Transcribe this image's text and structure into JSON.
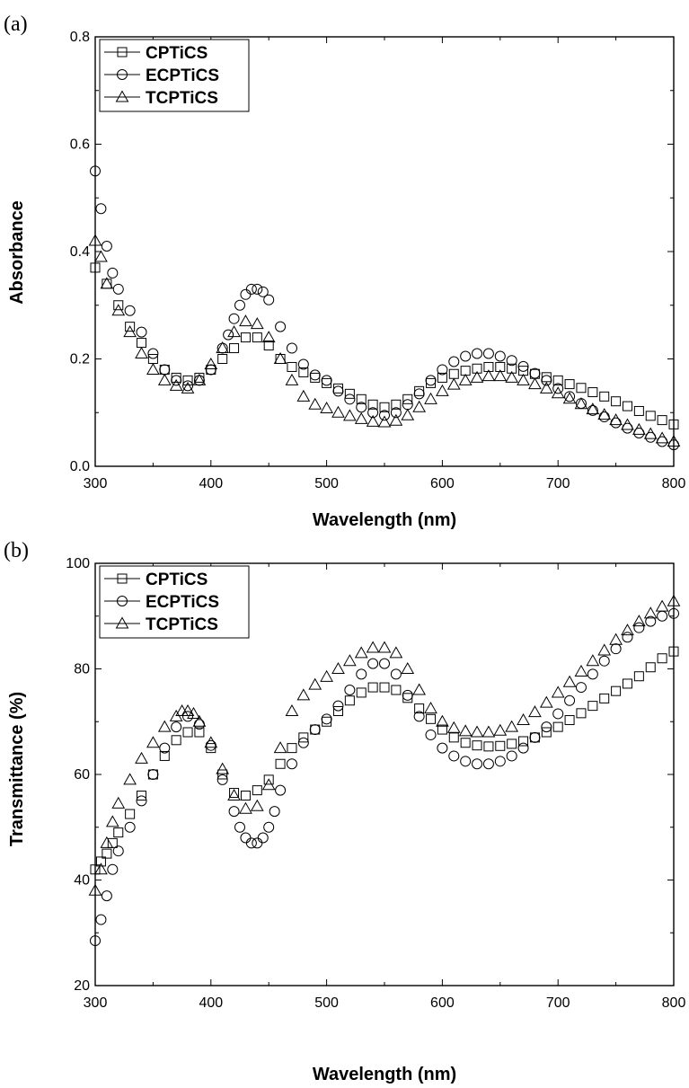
{
  "chart_data": [
    {
      "panel_label": "(a)",
      "type": "scatter",
      "xlabel": "Wavelength (nm)",
      "ylabel": "Absorbance",
      "xlim": [
        300,
        800
      ],
      "ylim": [
        0.0,
        0.8
      ],
      "xticks": [
        "300",
        "400",
        "500",
        "600",
        "700",
        "800"
      ],
      "yticks": [
        "0.0",
        "0.2",
        "0.4",
        "0.6",
        "0.8"
      ],
      "grid": false,
      "legend_position": "top-left",
      "series": [
        {
          "name": "CPTiCS",
          "marker": "square",
          "x": [
            300,
            310,
            320,
            330,
            340,
            350,
            360,
            370,
            380,
            390,
            400,
            410,
            420,
            430,
            440,
            450,
            460,
            470,
            480,
            490,
            500,
            510,
            520,
            530,
            540,
            550,
            560,
            570,
            580,
            590,
            600,
            610,
            620,
            630,
            640,
            650,
            660,
            670,
            680,
            690,
            700,
            710,
            720,
            730,
            740,
            750,
            760,
            770,
            780,
            790,
            800
          ],
          "y": [
            0.37,
            0.34,
            0.3,
            0.26,
            0.23,
            0.2,
            0.18,
            0.165,
            0.16,
            0.165,
            0.18,
            0.2,
            0.22,
            0.24,
            0.24,
            0.225,
            0.2,
            0.185,
            0.175,
            0.165,
            0.155,
            0.145,
            0.135,
            0.125,
            0.115,
            0.11,
            0.115,
            0.125,
            0.14,
            0.155,
            0.165,
            0.172,
            0.178,
            0.182,
            0.185,
            0.185,
            0.182,
            0.178,
            0.172,
            0.166,
            0.16,
            0.153,
            0.146,
            0.138,
            0.13,
            0.121,
            0.112,
            0.103,
            0.094,
            0.086,
            0.078
          ]
        },
        {
          "name": "ECPTiCS",
          "marker": "circle",
          "x": [
            300,
            305,
            310,
            315,
            320,
            330,
            340,
            350,
            360,
            370,
            380,
            390,
            400,
            410,
            415,
            420,
            425,
            430,
            435,
            440,
            445,
            450,
            460,
            470,
            480,
            490,
            500,
            510,
            520,
            530,
            540,
            550,
            560,
            570,
            580,
            590,
            600,
            610,
            620,
            630,
            640,
            650,
            660,
            670,
            680,
            690,
            700,
            710,
            720,
            730,
            740,
            750,
            760,
            770,
            780,
            790,
            800
          ],
          "y": [
            0.55,
            0.48,
            0.41,
            0.36,
            0.33,
            0.29,
            0.25,
            0.21,
            0.18,
            0.16,
            0.15,
            0.16,
            0.18,
            0.22,
            0.245,
            0.275,
            0.3,
            0.32,
            0.33,
            0.33,
            0.325,
            0.31,
            0.26,
            0.22,
            0.19,
            0.17,
            0.16,
            0.14,
            0.125,
            0.11,
            0.1,
            0.095,
            0.1,
            0.115,
            0.135,
            0.16,
            0.18,
            0.195,
            0.205,
            0.21,
            0.21,
            0.205,
            0.197,
            0.186,
            0.173,
            0.16,
            0.145,
            0.13,
            0.117,
            0.104,
            0.092,
            0.081,
            0.071,
            0.062,
            0.054,
            0.046,
            0.04
          ]
        },
        {
          "name": "TCPTiCS",
          "marker": "triangle",
          "x": [
            300,
            305,
            310,
            320,
            330,
            340,
            350,
            360,
            370,
            380,
            390,
            400,
            410,
            420,
            430,
            440,
            450,
            460,
            470,
            480,
            490,
            500,
            510,
            520,
            530,
            540,
            550,
            560,
            570,
            580,
            590,
            600,
            610,
            620,
            630,
            640,
            650,
            660,
            670,
            680,
            690,
            700,
            710,
            720,
            730,
            740,
            750,
            760,
            770,
            780,
            790,
            800
          ],
          "y": [
            0.42,
            0.39,
            0.34,
            0.29,
            0.25,
            0.21,
            0.18,
            0.16,
            0.15,
            0.145,
            0.16,
            0.19,
            0.22,
            0.25,
            0.27,
            0.265,
            0.24,
            0.2,
            0.16,
            0.13,
            0.115,
            0.108,
            0.1,
            0.094,
            0.088,
            0.083,
            0.082,
            0.085,
            0.095,
            0.11,
            0.125,
            0.14,
            0.152,
            0.16,
            0.165,
            0.168,
            0.168,
            0.165,
            0.16,
            0.153,
            0.145,
            0.136,
            0.126,
            0.116,
            0.106,
            0.096,
            0.086,
            0.077,
            0.068,
            0.06,
            0.052,
            0.046
          ]
        }
      ]
    },
    {
      "panel_label": "(b)",
      "type": "scatter",
      "xlabel": "Wavelength (nm)",
      "ylabel": "Transmittance (%)",
      "xlim": [
        300,
        800
      ],
      "ylim": [
        20,
        100
      ],
      "xticks": [
        "300",
        "400",
        "500",
        "600",
        "700",
        "800"
      ],
      "yticks": [
        "20",
        "40",
        "60",
        "80",
        "100"
      ],
      "grid": false,
      "legend_position": "top-left",
      "series": [
        {
          "name": "CPTiCS",
          "marker": "square",
          "x": [
            300,
            305,
            310,
            315,
            320,
            330,
            340,
            350,
            360,
            370,
            380,
            390,
            400,
            410,
            420,
            430,
            440,
            450,
            460,
            470,
            480,
            490,
            500,
            510,
            520,
            530,
            540,
            550,
            560,
            570,
            580,
            590,
            600,
            610,
            620,
            630,
            640,
            650,
            660,
            670,
            680,
            690,
            700,
            710,
            720,
            730,
            740,
            750,
            760,
            770,
            780,
            790,
            800
          ],
          "y": [
            42,
            43.5,
            45,
            47,
            49,
            52.5,
            56,
            60,
            63.5,
            66.5,
            68,
            68,
            65,
            60,
            56.5,
            56,
            57,
            59,
            62,
            65,
            67,
            68.5,
            70,
            72,
            74,
            75.5,
            76.5,
            76.5,
            76,
            74.5,
            72.5,
            70.5,
            68.5,
            67,
            66,
            65.5,
            65.3,
            65.4,
            65.8,
            66.3,
            67,
            68,
            69,
            70.3,
            71.6,
            73,
            74.4,
            75.8,
            77.2,
            78.6,
            80.3,
            82,
            83.3
          ]
        },
        {
          "name": "ECPTiCS",
          "marker": "circle",
          "x": [
            300,
            305,
            310,
            315,
            320,
            330,
            340,
            350,
            360,
            370,
            380,
            390,
            400,
            410,
            420,
            425,
            430,
            435,
            440,
            445,
            450,
            455,
            460,
            470,
            480,
            490,
            500,
            510,
            520,
            530,
            540,
            550,
            560,
            570,
            580,
            590,
            600,
            610,
            620,
            630,
            640,
            650,
            660,
            670,
            680,
            690,
            700,
            710,
            720,
            730,
            740,
            750,
            760,
            770,
            780,
            790,
            800
          ],
          "y": [
            28.5,
            32.5,
            37,
            42,
            45.5,
            50,
            55,
            60,
            65,
            69,
            71,
            69.5,
            65.5,
            59,
            53,
            50,
            48,
            47,
            47,
            48,
            50,
            53,
            57,
            62,
            66,
            68.5,
            70.5,
            73,
            76,
            79,
            81,
            81,
            79,
            75,
            71,
            67.5,
            65,
            63.5,
            62.5,
            62,
            62,
            62.5,
            63.5,
            65,
            67,
            69,
            71.5,
            74,
            76.5,
            79,
            81.5,
            83.8,
            86,
            87.8,
            89,
            90,
            90.5
          ]
        },
        {
          "name": "TCPTiCS",
          "marker": "triangle",
          "x": [
            300,
            305,
            310,
            315,
            320,
            330,
            340,
            350,
            360,
            370,
            375,
            380,
            385,
            390,
            400,
            410,
            420,
            430,
            440,
            450,
            460,
            470,
            480,
            490,
            500,
            510,
            520,
            530,
            540,
            550,
            560,
            570,
            580,
            590,
            600,
            610,
            620,
            630,
            640,
            650,
            660,
            670,
            680,
            690,
            700,
            710,
            720,
            730,
            740,
            750,
            760,
            770,
            780,
            790,
            800
          ],
          "y": [
            38,
            42,
            47,
            51,
            54.5,
            59,
            63,
            66,
            69,
            71,
            72,
            72,
            71.5,
            70,
            66,
            61,
            56,
            53.5,
            54,
            58,
            65,
            72,
            75,
            77,
            78.5,
            80,
            81.5,
            83,
            84,
            84,
            83,
            80,
            76,
            72.5,
            70,
            68.8,
            68.2,
            68,
            68,
            68.3,
            69,
            70.3,
            71.8,
            73.6,
            75.5,
            77.5,
            79.5,
            81.5,
            83.5,
            85.5,
            87.3,
            89,
            90.5,
            91.8,
            92.8
          ]
        }
      ]
    }
  ]
}
